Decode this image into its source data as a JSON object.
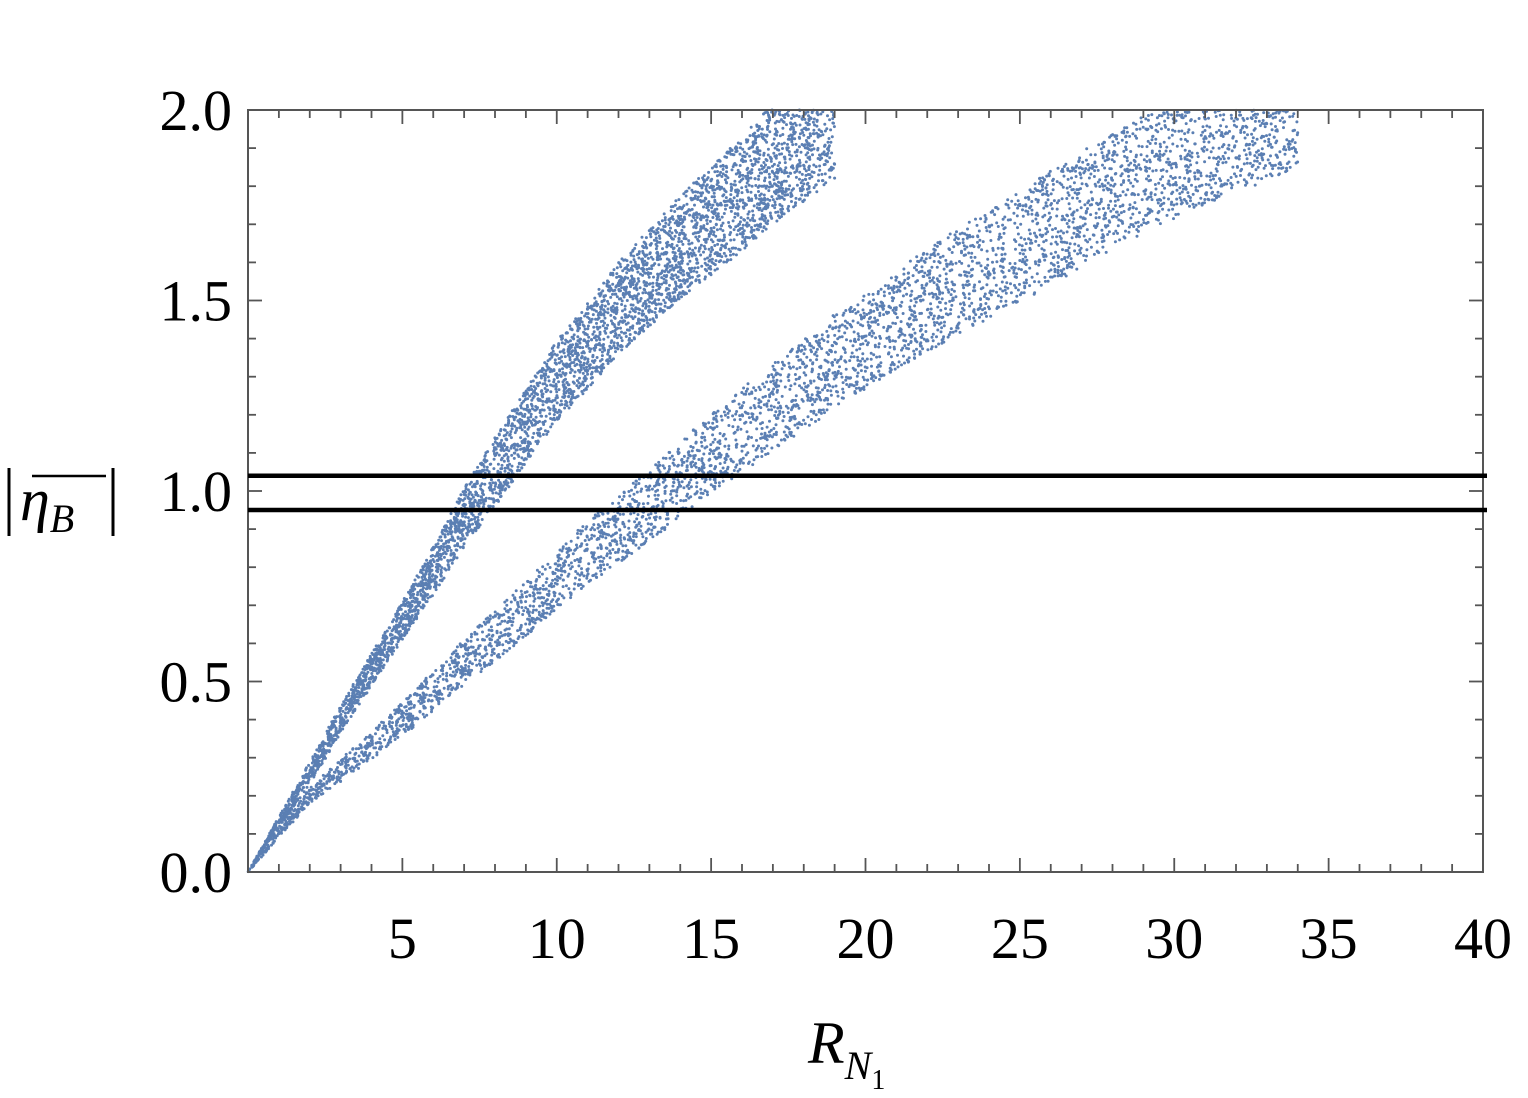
{
  "chart_data": {
    "type": "scatter",
    "title": "",
    "xlabel": "R",
    "xlabel_sub": "N",
    "xlabel_subsub": "1",
    "ylabel_main": "η",
    "ylabel_sub": "B",
    "xlim": [
      0,
      40
    ],
    "ylim": [
      0.0,
      2.0
    ],
    "xticks": [
      5,
      10,
      15,
      20,
      25,
      30,
      35,
      40
    ],
    "xtick_labels": [
      "5",
      "10",
      "15",
      "20",
      "25",
      "30",
      "35",
      "40"
    ],
    "yticks": [
      0.0,
      0.5,
      1.0,
      1.5,
      2.0
    ],
    "ytick_labels": [
      "0.0",
      "0.5",
      "1.0",
      "1.5",
      "2.0"
    ],
    "grid": false,
    "legend": "none",
    "point_color": "#5b7fb3",
    "reference_lines": [
      {
        "orientation": "horizontal",
        "y": 1.04,
        "color": "#000000"
      },
      {
        "orientation": "horizontal",
        "y": 0.95,
        "color": "#000000"
      }
    ],
    "series": [
      {
        "band": "upper",
        "center": [
          [
            0,
            0
          ],
          [
            1,
            0.13
          ],
          [
            2,
            0.26
          ],
          [
            3,
            0.4
          ],
          [
            4,
            0.53
          ],
          [
            5,
            0.66
          ],
          [
            6,
            0.79
          ],
          [
            7,
            0.93
          ],
          [
            8,
            1.05
          ],
          [
            9,
            1.17
          ],
          [
            10,
            1.29
          ],
          [
            11,
            1.38
          ],
          [
            12,
            1.48
          ],
          [
            13,
            1.56
          ],
          [
            14,
            1.64
          ],
          [
            15,
            1.71
          ],
          [
            16,
            1.78
          ],
          [
            17,
            1.86
          ],
          [
            18,
            1.93
          ],
          [
            19,
            2.0
          ]
        ],
        "halfwidth": [
          [
            0,
            0
          ],
          [
            2,
            0.03
          ],
          [
            5,
            0.05
          ],
          [
            8,
            0.09
          ],
          [
            12,
            0.12
          ],
          [
            16,
            0.15
          ],
          [
            19,
            0.18
          ]
        ]
      },
      {
        "band": "lower",
        "center": [
          [
            0,
            0
          ],
          [
            2,
            0.2
          ],
          [
            5,
            0.4
          ],
          [
            7,
            0.55
          ],
          [
            9,
            0.69
          ],
          [
            11,
            0.84
          ],
          [
            13,
            0.96
          ],
          [
            15,
            1.1
          ],
          [
            17,
            1.22
          ],
          [
            19,
            1.34
          ],
          [
            21,
            1.45
          ],
          [
            23,
            1.55
          ],
          [
            25,
            1.64
          ],
          [
            27,
            1.74
          ],
          [
            29,
            1.83
          ],
          [
            31,
            1.91
          ],
          [
            34,
            2.0
          ]
        ],
        "halfwidth": [
          [
            0,
            0
          ],
          [
            3,
            0.03
          ],
          [
            7,
            0.06
          ],
          [
            12,
            0.09
          ],
          [
            18,
            0.12
          ],
          [
            26,
            0.15
          ],
          [
            34,
            0.16
          ]
        ]
      }
    ]
  }
}
